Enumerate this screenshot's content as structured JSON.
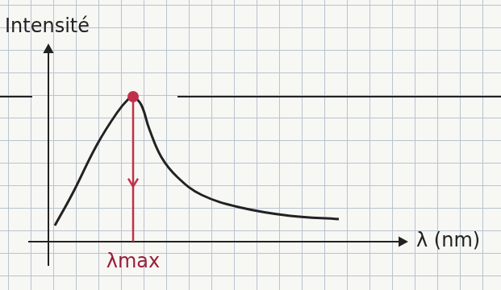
{
  "chart_data": {
    "type": "line",
    "x": [
      8,
      30,
      60,
      85,
      100,
      105,
      115,
      125,
      140,
      160,
      190,
      240,
      300,
      360
    ],
    "values": [
      20,
      60,
      120,
      160,
      178,
      180,
      170,
      140,
      105,
      80,
      58,
      42,
      32,
      28
    ],
    "color": "#222222",
    "xlim": [
      0,
      440
    ],
    "ylim": [
      0,
      240
    ],
    "x_label": "λ (nm)",
    "y_label": "Intensité",
    "annotations": [
      {
        "text": "λmax",
        "x": 105,
        "y": 180
      }
    ],
    "tick_labels": false,
    "grid": false
  }
}
